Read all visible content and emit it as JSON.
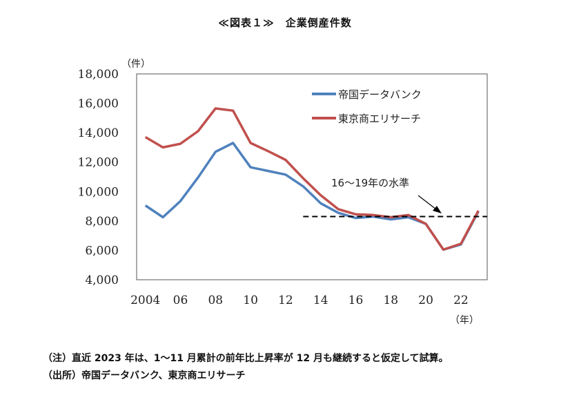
{
  "title": "≪図表１≫　企業倒産件数",
  "notes": {
    "note1": "（注）直近 2023 年は、1～11 月累計の前年比上昇率が 12 月も継続すると仮定して試算。",
    "note2": "（出所）帝国データバンク、東京商エリサーチ"
  },
  "chart_data": {
    "type": "line",
    "ylabel": "（件）",
    "xlabel": "（年）",
    "ylim": [
      4000,
      18000
    ],
    "yticks": [
      4000,
      6000,
      8000,
      10000,
      12000,
      14000,
      16000,
      18000
    ],
    "ytick_labels": [
      "4,000",
      "6,000",
      "8,000",
      "10,000",
      "12,000",
      "14,000",
      "16,000",
      "18,000"
    ],
    "xlim": [
      2003.5,
      2023.5
    ],
    "xticks": [
      2004,
      2006,
      2008,
      2010,
      2012,
      2014,
      2016,
      2018,
      2020,
      2022
    ],
    "xtick_labels": [
      "2004",
      "06",
      "08",
      "10",
      "12",
      "14",
      "16",
      "18",
      "20",
      "22"
    ],
    "x": [
      2004,
      2005,
      2006,
      2007,
      2008,
      2009,
      2010,
      2011,
      2012,
      2013,
      2014,
      2015,
      2016,
      2017,
      2018,
      2019,
      2020,
      2021,
      2022,
      2023
    ],
    "series": [
      {
        "name": "帝国データバンク",
        "color": "#4f81bd",
        "values": [
          9050,
          8250,
          9350,
          10950,
          12700,
          13300,
          11650,
          11400,
          11150,
          10350,
          9200,
          8550,
          8200,
          8300,
          8100,
          8250,
          7800,
          6050,
          6400,
          8650
        ]
      },
      {
        "name": "東京商エリサーチ",
        "color": "#c0504d",
        "values": [
          13700,
          13000,
          13250,
          14100,
          15650,
          15500,
          13300,
          12750,
          12150,
          10900,
          9750,
          8800,
          8450,
          8400,
          8250,
          8400,
          7800,
          6050,
          6450,
          8700
        ]
      }
    ],
    "reference_line": {
      "label": "16～19年の水準",
      "value": 8300,
      "x_from": 2013,
      "x_to": 2023.5,
      "style": "dashed"
    },
    "grid": false,
    "legend": "top-right"
  }
}
